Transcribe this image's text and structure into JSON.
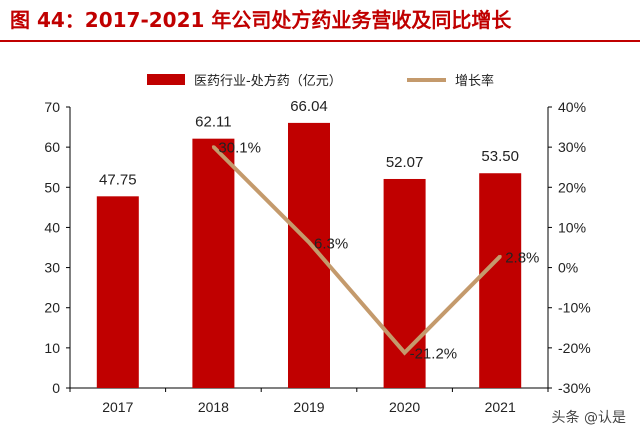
{
  "title": "图 44：2017-2021 年公司处方药业务营收及同比增长",
  "colors": {
    "title": "#c00000",
    "bar": "#c00000",
    "line": "#c49a6c",
    "text": "#222222",
    "axis": "#000000"
  },
  "watermark": "头条 @认是",
  "chart_data": {
    "type": "bar",
    "categories": [
      "2017",
      "2018",
      "2019",
      "2020",
      "2021"
    ],
    "series": [
      {
        "name": "医药行业-处方药（亿元）",
        "type": "bar",
        "axis": "left",
        "values": [
          47.75,
          62.11,
          66.04,
          52.07,
          53.5
        ],
        "labels": [
          "47.75",
          "62.11",
          "66.04",
          "52.07",
          "53.50"
        ]
      },
      {
        "name": "增长率",
        "type": "line",
        "axis": "right",
        "values": [
          null,
          30.1,
          6.3,
          -21.2,
          2.8
        ],
        "labels": [
          "",
          "30.1%",
          "6.3%",
          "-21.2%",
          "2.8%"
        ]
      }
    ],
    "y_left": {
      "lim": [
        0,
        70
      ],
      "ticks": [
        "0",
        "10",
        "20",
        "30",
        "40",
        "50",
        "60",
        "70"
      ]
    },
    "y_right": {
      "lim": [
        -30,
        40
      ],
      "ticks": [
        "-30%",
        "-20%",
        "-10%",
        "0%",
        "10%",
        "20%",
        "30%",
        "40%"
      ]
    },
    "grid": false,
    "legend": "top-center"
  }
}
